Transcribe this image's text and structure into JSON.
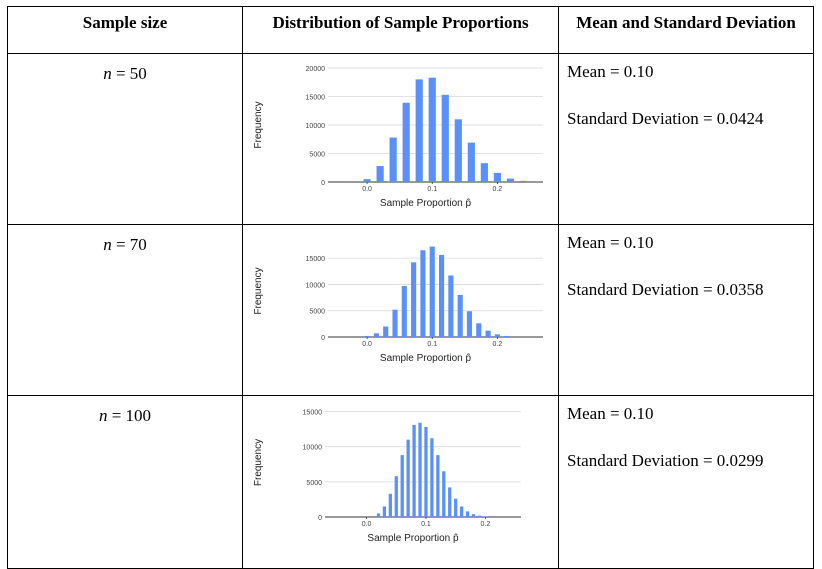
{
  "table": {
    "headers": [
      "Sample size",
      "Distribution of Sample Proportions",
      "Mean and Standard Deviation"
    ],
    "rows": [
      {
        "n_label": "n",
        "n_value": "= 50",
        "mean": "Mean = 0.10",
        "sd": "Standard Deviation = 0.0424"
      },
      {
        "n_label": "n",
        "n_value": "= 70",
        "mean": "Mean = 0.10",
        "sd": "Standard Deviation = 0.0358"
      },
      {
        "n_label": "n",
        "n_value": "= 100",
        "mean": "Mean = 0.10",
        "sd": "Standard Deviation = 0.0299"
      }
    ]
  },
  "colors": {
    "bar": "#5b8ff9",
    "grid": "#d9d9d9",
    "axis": "#333333"
  },
  "chart_data": [
    {
      "type": "bar",
      "xlabel": "Sample Proportion p̂",
      "ylabel": "Frequency",
      "x_ticks": [
        "0.0",
        "0.1",
        "0.2"
      ],
      "y_ticks": [
        "0",
        "5000",
        "10000",
        "15000",
        "20000"
      ],
      "ylim": [
        0,
        20000
      ],
      "xlim": [
        -0.06,
        0.27
      ],
      "x": [
        0.0,
        0.02,
        0.04,
        0.06,
        0.08,
        0.1,
        0.12,
        0.14,
        0.16,
        0.18,
        0.2,
        0.22,
        0.24
      ],
      "values": [
        500,
        2800,
        7800,
        13900,
        18000,
        18300,
        15300,
        11000,
        6900,
        3300,
        1600,
        600,
        200
      ]
    },
    {
      "type": "bar",
      "xlabel": "Sample Proportion p̂",
      "ylabel": "Frequency",
      "x_ticks": [
        "0.0",
        "0.1",
        "0.2"
      ],
      "y_ticks": [
        "0",
        "5000",
        "10000",
        "15000"
      ],
      "ylim": [
        0,
        17500
      ],
      "xlim": [
        -0.06,
        0.27
      ],
      "x": [
        0.0,
        0.0143,
        0.0286,
        0.0429,
        0.0571,
        0.0714,
        0.0857,
        0.1,
        0.1143,
        0.1286,
        0.1429,
        0.1571,
        0.1714,
        0.1857,
        0.2,
        0.2143
      ],
      "values": [
        200,
        700,
        2000,
        5200,
        9700,
        14200,
        16500,
        17200,
        15600,
        11700,
        8000,
        4900,
        2600,
        1200,
        500,
        200
      ]
    },
    {
      "type": "bar",
      "xlabel": "Sample Proportion p̂",
      "ylabel": "Frequency",
      "x_ticks": [
        "0.0",
        "0.1",
        "0.2"
      ],
      "y_ticks": [
        "0",
        "5000",
        "10000",
        "15000"
      ],
      "ylim": [
        0,
        15500
      ],
      "xlim": [
        -0.07,
        0.26
      ],
      "x": [
        0.02,
        0.03,
        0.04,
        0.05,
        0.06,
        0.07,
        0.08,
        0.09,
        0.1,
        0.11,
        0.12,
        0.13,
        0.14,
        0.15,
        0.16,
        0.17,
        0.18,
        0.19,
        0.2
      ],
      "values": [
        500,
        1500,
        3300,
        5800,
        8800,
        11000,
        13100,
        13400,
        12800,
        11200,
        8800,
        6500,
        4200,
        2600,
        1500,
        800,
        400,
        200,
        100
      ]
    }
  ]
}
